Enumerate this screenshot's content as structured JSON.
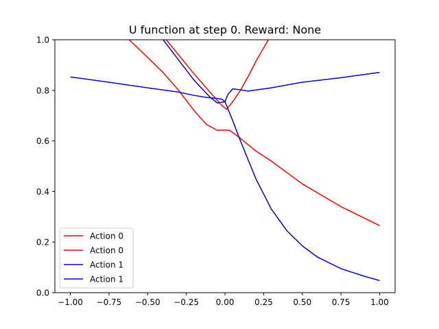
{
  "chart_data": {
    "type": "line",
    "title": "U function at step 0. Reward: None",
    "xlabel": "",
    "ylabel": "",
    "xlim": [
      -1.1,
      1.1
    ],
    "ylim": [
      0.0,
      1.0
    ],
    "xticks": [
      -1.0,
      -0.75,
      -0.5,
      -0.25,
      0.0,
      0.25,
      0.5,
      0.75,
      1.0
    ],
    "xtick_labels": [
      "−1.00",
      "−0.75",
      "−0.50",
      "−0.25",
      "0.00",
      "0.25",
      "0.50",
      "0.75",
      "1.00"
    ],
    "yticks": [
      0.0,
      0.2,
      0.4,
      0.6,
      0.8,
      1.0
    ],
    "ytick_labels": [
      "0.0",
      "0.2",
      "0.4",
      "0.6",
      "0.8",
      "1.0"
    ],
    "grid": false,
    "legend_position": "lower-left",
    "series": [
      {
        "name": "Action 0",
        "color": "#ff0000",
        "points": [
          [
            -0.62,
            1.0
          ],
          [
            -0.5,
            0.93
          ],
          [
            -0.4,
            0.87
          ],
          [
            -0.3,
            0.8
          ],
          [
            -0.2,
            0.72
          ],
          [
            -0.12,
            0.665
          ],
          [
            -0.05,
            0.642
          ],
          [
            0.0,
            0.643
          ],
          [
            0.03,
            0.642
          ],
          [
            0.1,
            0.61
          ],
          [
            0.2,
            0.56
          ],
          [
            0.3,
            0.52
          ],
          [
            0.5,
            0.43
          ],
          [
            0.75,
            0.34
          ],
          [
            1.0,
            0.265
          ]
        ]
      },
      {
        "name": "Action 0",
        "color": "#ff0000",
        "points": [
          [
            -0.38,
            1.0
          ],
          [
            -0.3,
            0.94
          ],
          [
            -0.2,
            0.865
          ],
          [
            -0.1,
            0.795
          ],
          [
            -0.02,
            0.74
          ],
          [
            0.01,
            0.725
          ],
          [
            0.05,
            0.755
          ],
          [
            0.1,
            0.8
          ],
          [
            0.15,
            0.855
          ],
          [
            0.2,
            0.915
          ],
          [
            0.28,
            1.0
          ]
        ]
      },
      {
        "name": "Action 1",
        "color": "#0000cc",
        "points": [
          [
            -1.0,
            0.853
          ],
          [
            -0.75,
            0.832
          ],
          [
            -0.5,
            0.81
          ],
          [
            -0.3,
            0.793
          ],
          [
            -0.2,
            0.78
          ],
          [
            -0.12,
            0.772
          ],
          [
            -0.05,
            0.768
          ],
          [
            -0.02,
            0.765
          ],
          [
            0.0,
            0.755
          ],
          [
            0.02,
            0.785
          ],
          [
            0.05,
            0.806
          ],
          [
            0.1,
            0.802
          ],
          [
            0.15,
            0.797
          ],
          [
            0.3,
            0.81
          ],
          [
            0.5,
            0.832
          ],
          [
            0.75,
            0.85
          ],
          [
            1.0,
            0.871
          ]
        ]
      },
      {
        "name": "Action 1",
        "color": "#0000cc",
        "points": [
          [
            -0.4,
            1.0
          ],
          [
            -0.3,
            0.92
          ],
          [
            -0.2,
            0.84
          ],
          [
            -0.1,
            0.775
          ],
          [
            -0.05,
            0.75
          ],
          [
            0.0,
            0.755
          ],
          [
            0.05,
            0.68
          ],
          [
            0.1,
            0.6
          ],
          [
            0.2,
            0.45
          ],
          [
            0.3,
            0.33
          ],
          [
            0.4,
            0.245
          ],
          [
            0.5,
            0.185
          ],
          [
            0.6,
            0.14
          ],
          [
            0.75,
            0.095
          ],
          [
            0.9,
            0.065
          ],
          [
            1.0,
            0.048
          ]
        ]
      }
    ]
  }
}
